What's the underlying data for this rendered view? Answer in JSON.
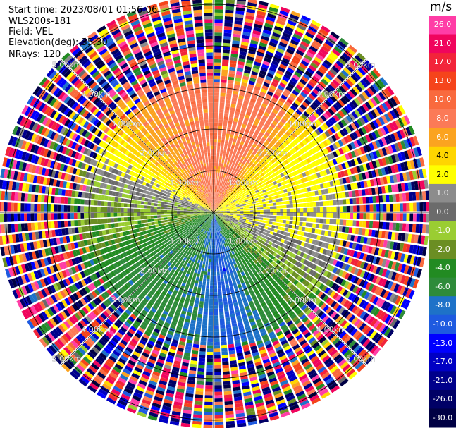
{
  "info": {
    "start_time": "Start time: 2023/08/01 01:56:06",
    "instrument": "WLS200s-181",
    "field": "Field: VEL",
    "elevation": "Elevation(deg): 35.30",
    "nrays": "NRays: 120"
  },
  "colorbar": {
    "unit": "m/s",
    "bins": [
      {
        "label": "26.0",
        "color": "#ff3da6",
        "text_color": "#ffffff"
      },
      {
        "label": "21.0",
        "color": "#f0055d",
        "text_color": "#ffffff"
      },
      {
        "label": "17.0",
        "color": "#f2243a",
        "text_color": "#ffffff"
      },
      {
        "label": "13.0",
        "color": "#f5441b",
        "text_color": "#ffffff"
      },
      {
        "label": "10.0",
        "color": "#f96a3e",
        "text_color": "#ffffff"
      },
      {
        "label": "8.0",
        "color": "#fb7a57",
        "text_color": "#ffffff"
      },
      {
        "label": "6.0",
        "color": "#fba320",
        "text_color": "#ffffff"
      },
      {
        "label": "4.0",
        "color": "#ffd500",
        "text_color": "#000000"
      },
      {
        "label": "2.0",
        "color": "#ffff00",
        "text_color": "#000000"
      },
      {
        "label": "1.0",
        "color": "#8c8c8c",
        "text_color": "#ffffff"
      },
      {
        "label": "0.0",
        "color": "#6b6b6b",
        "text_color": "#ffffff"
      },
      {
        "label": "-1.0",
        "color": "#9acd32",
        "text_color": "#ffffff"
      },
      {
        "label": "-2.0",
        "color": "#6b8e23",
        "text_color": "#ffffff"
      },
      {
        "label": "-4.0",
        "color": "#228b22",
        "text_color": "#ffffff"
      },
      {
        "label": "-6.0",
        "color": "#2e8b3a",
        "text_color": "#ffffff"
      },
      {
        "label": "-8.0",
        "color": "#1e72c8",
        "text_color": "#ffffff"
      },
      {
        "label": "-10.0",
        "color": "#1e5ae0",
        "text_color": "#ffffff"
      },
      {
        "label": "-13.0",
        "color": "#0000ff",
        "text_color": "#ffffff"
      },
      {
        "label": "-17.0",
        "color": "#0000c4",
        "text_color": "#ffffff"
      },
      {
        "label": "-21.0",
        "color": "#00008b",
        "text_color": "#ffffff"
      },
      {
        "label": "-26.0",
        "color": "#000066",
        "text_color": "#ffffff"
      },
      {
        "label": "-30.0",
        "color": "#000044",
        "text_color": "#ffffff"
      }
    ]
  },
  "chart_data": {
    "type": "heatmap",
    "projection": "polar PPI (plan position indicator)",
    "field": "VEL",
    "unit": "m/s",
    "elevation_deg": 35.3,
    "nrays": 120,
    "range_rings_km": [
      1.0,
      2.0,
      3.0,
      4.0,
      5.0
    ],
    "ring_labels": [
      "1.00km",
      "2.00km",
      "3.00km",
      "4.00km",
      "5.00km"
    ],
    "max_range_km": 5.2,
    "valid_range_km": 3.3,
    "sector_velocity_ms": [
      {
        "azimuth_deg": 0,
        "value": 9
      },
      {
        "azimuth_deg": 30,
        "value": 9
      },
      {
        "azimuth_deg": 45,
        "value": 5
      },
      {
        "azimuth_deg": 60,
        "value": 3
      },
      {
        "azimuth_deg": 75,
        "value": 3
      },
      {
        "azimuth_deg": 90,
        "value": 2
      },
      {
        "azimuth_deg": 105,
        "value": 2
      },
      {
        "azimuth_deg": 115,
        "value": 0.5
      },
      {
        "azimuth_deg": 130,
        "value": -1.5
      },
      {
        "azimuth_deg": 150,
        "value": -4
      },
      {
        "azimuth_deg": 170,
        "value": -9
      },
      {
        "azimuth_deg": 200,
        "value": -5
      },
      {
        "azimuth_deg": 230,
        "value": -5
      },
      {
        "azimuth_deg": 260,
        "value": -1.5
      },
      {
        "azimuth_deg": 285,
        "value": 0.5
      },
      {
        "azimuth_deg": 300,
        "value": 3
      },
      {
        "azimuth_deg": 320,
        "value": 7
      },
      {
        "azimuth_deg": 345,
        "value": 9
      }
    ],
    "colorbar_levels": [
      -30,
      -26,
      -21,
      -17,
      -13,
      -10,
      -8,
      -6,
      -4,
      -2,
      -1,
      0,
      1,
      2,
      4,
      6,
      8,
      10,
      13,
      17,
      21,
      26,
      30
    ]
  }
}
